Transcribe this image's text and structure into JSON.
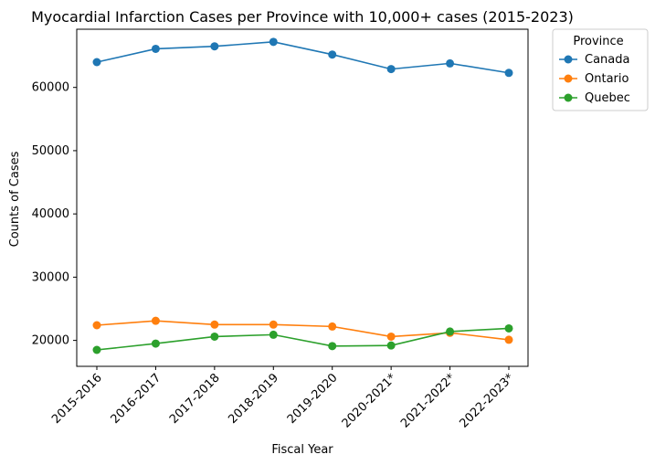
{
  "chart_data": {
    "type": "line",
    "title": "Myocardial Infarction Cases per Province with 10,000+ cases (2015-2023)",
    "xlabel": "Fiscal Year",
    "ylabel": "Counts of Cases",
    "categories": [
      "2015-2016",
      "2016-2017",
      "2017-2018",
      "2018-2019",
      "2019-2020",
      "2020-2021*",
      "2021-2022*",
      "2022-2023*"
    ],
    "ylim": [
      15900,
      69200
    ],
    "yticks": [
      20000,
      30000,
      40000,
      50000,
      60000
    ],
    "legend": {
      "title": "Province",
      "placement": "outside-top-right"
    },
    "grid": false,
    "series": [
      {
        "name": "Canada",
        "color": "#1f77b4",
        "values": [
          64000,
          66100,
          66500,
          67200,
          65200,
          62900,
          63800,
          62300
        ]
      },
      {
        "name": "Ontario",
        "color": "#ff7f0e",
        "values": [
          22400,
          23100,
          22500,
          22500,
          22200,
          20600,
          21200,
          20100
        ]
      },
      {
        "name": "Quebec",
        "color": "#2ca02c",
        "values": [
          18500,
          19500,
          20600,
          20900,
          19100,
          19200,
          21400,
          21900
        ]
      }
    ]
  }
}
